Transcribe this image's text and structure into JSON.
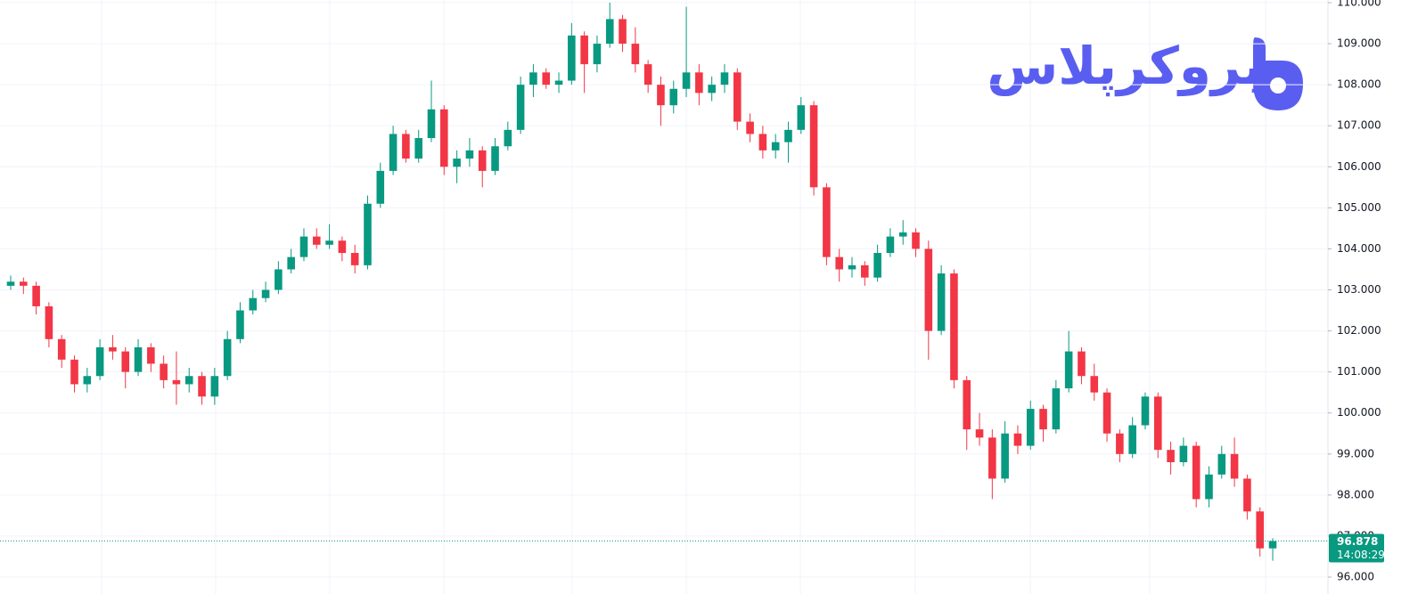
{
  "chart_data": {
    "type": "candlestick",
    "logo": "بروکرپلاس",
    "up_color": "#089981",
    "down_color": "#f23645",
    "ylim": [
      96,
      110
    ],
    "yticks": [
      {
        "value": 96,
        "label": "96.000"
      },
      {
        "value": 97,
        "label": "97.000"
      },
      {
        "value": 98,
        "label": "98.000"
      },
      {
        "value": 99,
        "label": "99.000"
      },
      {
        "value": 100,
        "label": "100.000"
      },
      {
        "value": 101,
        "label": "101.000"
      },
      {
        "value": 102,
        "label": "102.000"
      },
      {
        "value": 103,
        "label": "103.000"
      },
      {
        "value": 104,
        "label": "104.000"
      },
      {
        "value": 105,
        "label": "105.000"
      },
      {
        "value": 106,
        "label": "106.000"
      },
      {
        "value": 107,
        "label": "107.000"
      },
      {
        "value": 108,
        "label": "108.000"
      },
      {
        "value": 109,
        "label": "109.000"
      },
      {
        "value": 110,
        "label": "110.000"
      }
    ],
    "grid": true,
    "last_price": 96.878,
    "countdown": "14:08:29",
    "candles": [
      [
        103.1,
        103.35,
        103.0,
        103.2
      ],
      [
        103.2,
        103.3,
        102.9,
        103.1
      ],
      [
        103.1,
        103.2,
        102.4,
        102.6
      ],
      [
        102.6,
        102.7,
        101.6,
        101.8
      ],
      [
        101.8,
        101.9,
        101.1,
        101.3
      ],
      [
        101.3,
        101.4,
        100.5,
        100.7
      ],
      [
        100.7,
        101.1,
        100.5,
        100.9
      ],
      [
        100.9,
        101.8,
        100.8,
        101.6
      ],
      [
        101.6,
        101.9,
        101.3,
        101.5
      ],
      [
        101.5,
        101.6,
        100.6,
        101.0
      ],
      [
        101.0,
        101.8,
        100.9,
        101.6
      ],
      [
        101.6,
        101.7,
        101.0,
        101.2
      ],
      [
        101.2,
        101.4,
        100.6,
        100.8
      ],
      [
        100.8,
        101.5,
        100.2,
        100.7
      ],
      [
        100.7,
        101.1,
        100.5,
        100.9
      ],
      [
        100.9,
        101.0,
        100.2,
        100.4
      ],
      [
        100.4,
        101.1,
        100.2,
        100.9
      ],
      [
        100.9,
        102.0,
        100.8,
        101.8
      ],
      [
        101.8,
        102.7,
        101.7,
        102.5
      ],
      [
        102.5,
        103.0,
        102.4,
        102.8
      ],
      [
        102.8,
        103.2,
        102.7,
        103.0
      ],
      [
        103.0,
        103.7,
        102.9,
        103.5
      ],
      [
        103.5,
        104.0,
        103.4,
        103.8
      ],
      [
        103.8,
        104.5,
        103.7,
        104.3
      ],
      [
        104.3,
        104.5,
        104.0,
        104.1
      ],
      [
        104.1,
        104.6,
        104.0,
        104.2
      ],
      [
        104.2,
        104.3,
        103.7,
        103.9
      ],
      [
        103.9,
        104.1,
        103.4,
        103.6
      ],
      [
        103.6,
        105.3,
        103.5,
        105.1
      ],
      [
        105.1,
        106.1,
        105.0,
        105.9
      ],
      [
        105.9,
        107.0,
        105.8,
        106.8
      ],
      [
        106.8,
        106.9,
        106.1,
        106.2
      ],
      [
        106.2,
        106.9,
        106.1,
        106.7
      ],
      [
        106.7,
        108.1,
        106.6,
        107.4
      ],
      [
        107.4,
        107.5,
        105.8,
        106.0
      ],
      [
        106.0,
        106.4,
        105.6,
        106.2
      ],
      [
        106.2,
        106.7,
        106.0,
        106.4
      ],
      [
        106.4,
        106.5,
        105.5,
        105.9
      ],
      [
        105.9,
        106.7,
        105.8,
        106.5
      ],
      [
        106.5,
        107.1,
        106.4,
        106.9
      ],
      [
        106.9,
        108.2,
        106.8,
        108.0
      ],
      [
        108.0,
        108.5,
        107.7,
        108.3
      ],
      [
        108.3,
        108.4,
        107.9,
        108.0
      ],
      [
        108.0,
        108.3,
        107.8,
        108.1
      ],
      [
        108.1,
        109.5,
        108.0,
        109.2
      ],
      [
        109.2,
        109.3,
        107.8,
        108.5
      ],
      [
        108.5,
        109.2,
        108.3,
        109.0
      ],
      [
        109.0,
        110.0,
        108.9,
        109.6
      ],
      [
        109.6,
        109.7,
        108.8,
        109.0
      ],
      [
        109.0,
        109.4,
        108.3,
        108.5
      ],
      [
        108.5,
        108.6,
        107.8,
        108.0
      ],
      [
        108.0,
        108.2,
        107.0,
        107.5
      ],
      [
        107.5,
        108.1,
        107.3,
        107.9
      ],
      [
        107.9,
        109.9,
        107.7,
        108.3
      ],
      [
        108.3,
        108.5,
        107.5,
        107.8
      ],
      [
        107.8,
        108.2,
        107.6,
        108.0
      ],
      [
        108.0,
        108.5,
        107.8,
        108.3
      ],
      [
        108.3,
        108.4,
        106.9,
        107.1
      ],
      [
        107.1,
        107.3,
        106.6,
        106.8
      ],
      [
        106.8,
        107.0,
        106.2,
        106.4
      ],
      [
        106.4,
        106.8,
        106.2,
        106.6
      ],
      [
        106.6,
        107.1,
        106.1,
        106.9
      ],
      [
        106.9,
        107.7,
        106.8,
        107.5
      ],
      [
        107.5,
        107.6,
        105.3,
        105.5
      ],
      [
        105.5,
        105.6,
        103.6,
        103.8
      ],
      [
        103.8,
        104.0,
        103.2,
        103.5
      ],
      [
        103.5,
        103.8,
        103.3,
        103.6
      ],
      [
        103.6,
        103.7,
        103.1,
        103.3
      ],
      [
        103.3,
        104.1,
        103.2,
        103.9
      ],
      [
        103.9,
        104.5,
        103.8,
        104.3
      ],
      [
        104.3,
        104.7,
        104.1,
        104.4
      ],
      [
        104.4,
        104.5,
        103.8,
        104.0
      ],
      [
        104.0,
        104.2,
        101.3,
        102.0
      ],
      [
        102.0,
        103.6,
        101.9,
        103.4
      ],
      [
        103.4,
        103.5,
        100.6,
        100.8
      ],
      [
        100.8,
        100.9,
        99.1,
        99.6
      ],
      [
        99.6,
        100.0,
        99.2,
        99.4
      ],
      [
        99.4,
        99.6,
        97.9,
        98.4
      ],
      [
        98.4,
        99.8,
        98.3,
        99.5
      ],
      [
        99.5,
        99.7,
        99.0,
        99.2
      ],
      [
        99.2,
        100.3,
        99.1,
        100.1
      ],
      [
        100.1,
        100.2,
        99.3,
        99.6
      ],
      [
        99.6,
        100.8,
        99.5,
        100.6
      ],
      [
        100.6,
        102.0,
        100.5,
        101.5
      ],
      [
        101.5,
        101.6,
        100.7,
        100.9
      ],
      [
        100.9,
        101.2,
        100.3,
        100.5
      ],
      [
        100.5,
        100.6,
        99.3,
        99.5
      ],
      [
        99.5,
        99.6,
        98.8,
        99.0
      ],
      [
        99.0,
        99.9,
        98.9,
        99.7
      ],
      [
        99.7,
        100.5,
        99.6,
        100.4
      ],
      [
        100.4,
        100.5,
        98.9,
        99.1
      ],
      [
        99.1,
        99.3,
        98.5,
        98.8
      ],
      [
        98.8,
        99.4,
        98.7,
        99.2
      ],
      [
        99.2,
        99.3,
        97.7,
        97.9
      ],
      [
        97.9,
        98.7,
        97.7,
        98.5
      ],
      [
        98.5,
        99.2,
        98.4,
        99.0
      ],
      [
        99.0,
        99.4,
        98.2,
        98.4
      ],
      [
        98.4,
        98.5,
        97.4,
        97.6
      ],
      [
        97.6,
        97.7,
        96.5,
        96.7
      ],
      [
        96.7,
        96.95,
        96.4,
        96.878
      ]
    ]
  }
}
